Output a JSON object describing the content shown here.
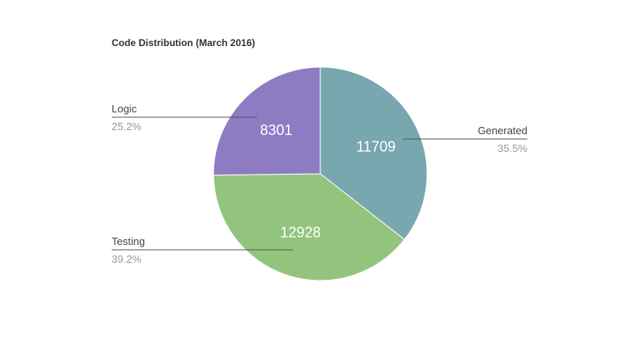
{
  "chart_data": {
    "type": "pie",
    "title": "Code Distribution (March 2016)",
    "categories": [
      "Generated",
      "Testing",
      "Logic"
    ],
    "values": [
      11709,
      12928,
      8301
    ],
    "percent_labels": [
      "35.5%",
      "39.2%",
      "25.2%"
    ],
    "value_labels": [
      "11709",
      "12928",
      "8301"
    ],
    "colors": [
      "#78a7b0",
      "#93c47d",
      "#8e7cc3"
    ],
    "legend": "callout labels beside slices",
    "start_angle_deg": 0,
    "direction": "clockwise"
  }
}
